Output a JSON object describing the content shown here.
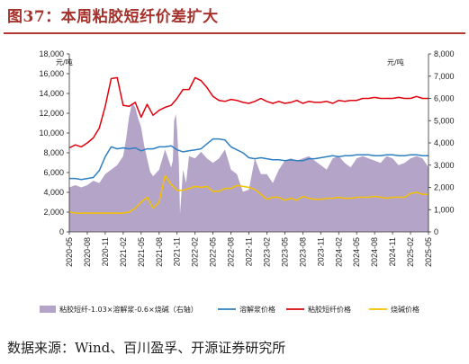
{
  "header": {
    "title": "图37：本周粘胶短纤价差扩大"
  },
  "footer": {
    "source": "数据来源：Wind、百川盈孚、开源证券研究所"
  },
  "colors": {
    "spread": "#b3a4c8",
    "pulp": "#2f7fc1",
    "vsf": "#e0000e",
    "soda": "#f5c000",
    "title": "#a5322c"
  },
  "chart_data": {
    "type": "line",
    "left_unit": "元/吨",
    "right_unit": "元/吨",
    "ylim_left": [
      0,
      18000
    ],
    "ylim_right": [
      0,
      8000
    ],
    "y_ticks_left": [
      "0",
      "2,000",
      "4,000",
      "6,000",
      "8,000",
      "10,000",
      "12,000",
      "14,000",
      "16,000",
      "18,000"
    ],
    "y_ticks_right": [
      "0",
      "1,000",
      "2,000",
      "3,000",
      "4,000",
      "5,000",
      "6,000",
      "7,000",
      "8,000"
    ],
    "x_ticks": [
      "2020-05",
      "2020-08",
      "2020-11",
      "2021-02",
      "2021-05",
      "2021-08",
      "2021-11",
      "2022-02",
      "2022-05",
      "2022-08",
      "2022-11",
      "2023-02",
      "2023-05",
      "2023-08",
      "2023-11",
      "2024-02",
      "2024-05",
      "2024-08",
      "2024-11",
      "2025-02",
      "2025-05"
    ],
    "grid": false,
    "legend_position": "bottom",
    "series": [
      {
        "name": "粘胶短纤-1.03×溶解浆-0.6×烧碱（右轴）",
        "type": "area",
        "axis": "right",
        "x": [
          0,
          1,
          2,
          3,
          4,
          5,
          6,
          7,
          8,
          9,
          9.5,
          10,
          10.5,
          11,
          11.5,
          12,
          12.5,
          13,
          13.5,
          14,
          15,
          16,
          17,
          17.3,
          17.5,
          17.8,
          18,
          18.3,
          18.5,
          19,
          19.5,
          20,
          21,
          22,
          23,
          24,
          25,
          26,
          27,
          28,
          29,
          30,
          31,
          32,
          33,
          34,
          35,
          36,
          37,
          38,
          39,
          40,
          41,
          42,
          43,
          44,
          45,
          46,
          47,
          48,
          49,
          50,
          51,
          52,
          53,
          54,
          55,
          56,
          57,
          58,
          59,
          60
        ],
        "values": [
          2000,
          2100,
          2000,
          2100,
          2300,
          2200,
          2600,
          2800,
          3000,
          3400,
          4200,
          5200,
          5800,
          5600,
          5100,
          4700,
          3900,
          3300,
          2700,
          2500,
          2800,
          3700,
          2900,
          3200,
          5000,
          5300,
          4600,
          3100,
          800,
          2800,
          2200,
          3400,
          3300,
          3600,
          3300,
          3100,
          3300,
          3700,
          2800,
          2600,
          1800,
          1900,
          3300,
          2600,
          2600,
          2200,
          2800,
          3200,
          3300,
          3200,
          3300,
          3400,
          3200,
          3000,
          2800,
          3300,
          3400,
          3100,
          2900,
          3300,
          3400,
          3300,
          3200,
          3100,
          3400,
          3300,
          3000,
          3100,
          3300,
          3400,
          3300,
          2900
        ]
      },
      {
        "name": "溶解浆价格",
        "type": "line",
        "axis": "left",
        "x": [
          0,
          1,
          2,
          3,
          4,
          5,
          6,
          7,
          8,
          9,
          10,
          11,
          12,
          13,
          14,
          15,
          16,
          17,
          18,
          19,
          20,
          21,
          22,
          23,
          24,
          25,
          26,
          27,
          28,
          29,
          30,
          31,
          32,
          33,
          34,
          35,
          36,
          37,
          38,
          39,
          40,
          41,
          42,
          43,
          44,
          45,
          46,
          47,
          48,
          49,
          50,
          51,
          52,
          53,
          54,
          55,
          56,
          57,
          58,
          59,
          60
        ],
        "values": [
          5400,
          5400,
          5300,
          5400,
          5500,
          6200,
          7600,
          8600,
          8400,
          8500,
          8400,
          8500,
          8200,
          8400,
          8400,
          8600,
          8600,
          8700,
          8300,
          8100,
          8200,
          8300,
          8400,
          8900,
          9400,
          9400,
          9300,
          8600,
          8300,
          8000,
          7500,
          7400,
          7500,
          7400,
          7300,
          7300,
          7200,
          7300,
          7200,
          7200,
          7400,
          7400,
          7500,
          7600,
          7700,
          7600,
          7700,
          7700,
          7800,
          7800,
          7800,
          7700,
          7700,
          7800,
          7800,
          7700,
          7700,
          7800,
          7800,
          7700,
          7700
        ]
      },
      {
        "name": "粘胶短纤价格",
        "type": "line",
        "axis": "left",
        "x": [
          0,
          1,
          2,
          3,
          4,
          5,
          6,
          7,
          8,
          9,
          10,
          11,
          12,
          13,
          14,
          15,
          16,
          17,
          18,
          19,
          20,
          21,
          22,
          23,
          24,
          25,
          26,
          27,
          28,
          29,
          30,
          31,
          32,
          33,
          34,
          35,
          36,
          37,
          38,
          39,
          40,
          41,
          42,
          43,
          44,
          45,
          46,
          47,
          48,
          49,
          50,
          51,
          52,
          53,
          54,
          55,
          56,
          57,
          58,
          59,
          60
        ],
        "values": [
          8500,
          8800,
          8600,
          9000,
          9500,
          10500,
          12700,
          15500,
          15600,
          12800,
          12700,
          13100,
          11600,
          12900,
          11800,
          12300,
          12600,
          12800,
          13500,
          14400,
          14400,
          15600,
          15300,
          14600,
          13700,
          13300,
          13200,
          13400,
          13300,
          13100,
          13000,
          13200,
          13500,
          13200,
          13000,
          13200,
          13000,
          13100,
          13300,
          13000,
          13200,
          13100,
          13100,
          13200,
          13000,
          13300,
          13200,
          13300,
          13300,
          13500,
          13500,
          13600,
          13500,
          13500,
          13500,
          13600,
          13500,
          13500,
          13700,
          13500,
          13500
        ]
      },
      {
        "name": "烧碱价格",
        "type": "line",
        "axis": "left",
        "x": [
          0,
          1,
          2,
          3,
          4,
          5,
          6,
          7,
          8,
          9,
          10,
          11,
          12,
          13,
          14,
          15,
          16,
          17,
          18,
          19,
          20,
          21,
          22,
          23,
          24,
          25,
          26,
          27,
          28,
          29,
          30,
          31,
          32,
          33,
          34,
          35,
          36,
          37,
          38,
          39,
          40,
          41,
          42,
          43,
          44,
          45,
          46,
          47,
          48,
          49,
          50,
          51,
          52,
          53,
          54,
          55,
          56,
          57,
          58,
          59,
          60
        ],
        "values": [
          2000,
          1900,
          1900,
          1900,
          1900,
          1900,
          1900,
          1900,
          1900,
          1900,
          2000,
          2400,
          3000,
          3500,
          2400,
          3000,
          5700,
          4800,
          4200,
          4200,
          4400,
          4600,
          4500,
          4600,
          4100,
          4100,
          4400,
          4400,
          4700,
          4600,
          4500,
          4300,
          3800,
          3300,
          3500,
          3500,
          3200,
          3400,
          3200,
          3600,
          3400,
          3300,
          3300,
          3400,
          3400,
          3500,
          3400,
          3400,
          3500,
          3500,
          3500,
          3600,
          3500,
          3400,
          3500,
          3500,
          3500,
          3900,
          4000,
          3800,
          3800
        ]
      }
    ]
  }
}
